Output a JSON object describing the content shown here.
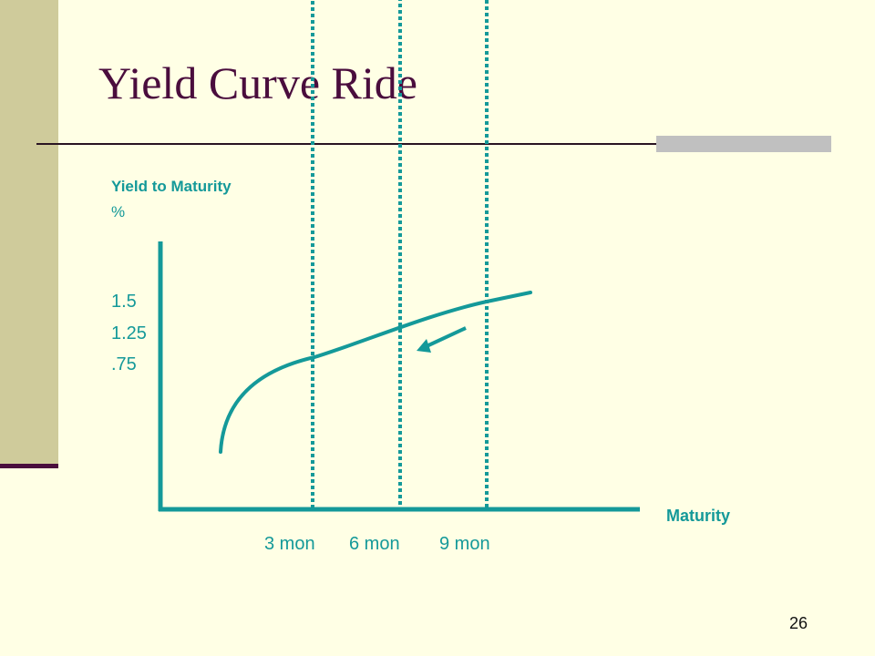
{
  "slide": {
    "title": "Yield Curve Ride",
    "number": "26"
  },
  "colors": {
    "title": "#4a0d3d",
    "chart_teal": "#149999",
    "marker": "#7a1c1c",
    "background": "#ffffe5",
    "side_bar": "#cfcb9b"
  },
  "chart_data": {
    "type": "line",
    "ylabel": "Yield to Maturity",
    "yunit": "%",
    "xlabel": "Maturity",
    "x_tick_labels": [
      "3 mon",
      "6 mon",
      "9 mon"
    ],
    "y_tick_labels": [
      "1.5",
      "1.25",
      ".75"
    ],
    "points": [
      {
        "x": "3 mon",
        "y": 0.75
      },
      {
        "x": "6 mon",
        "y": 1.25
      },
      {
        "x": "9 mon",
        "y": 1.5
      }
    ],
    "dotted_guides": true,
    "arrow": "down the curve from 9 mon toward 6 mon"
  }
}
